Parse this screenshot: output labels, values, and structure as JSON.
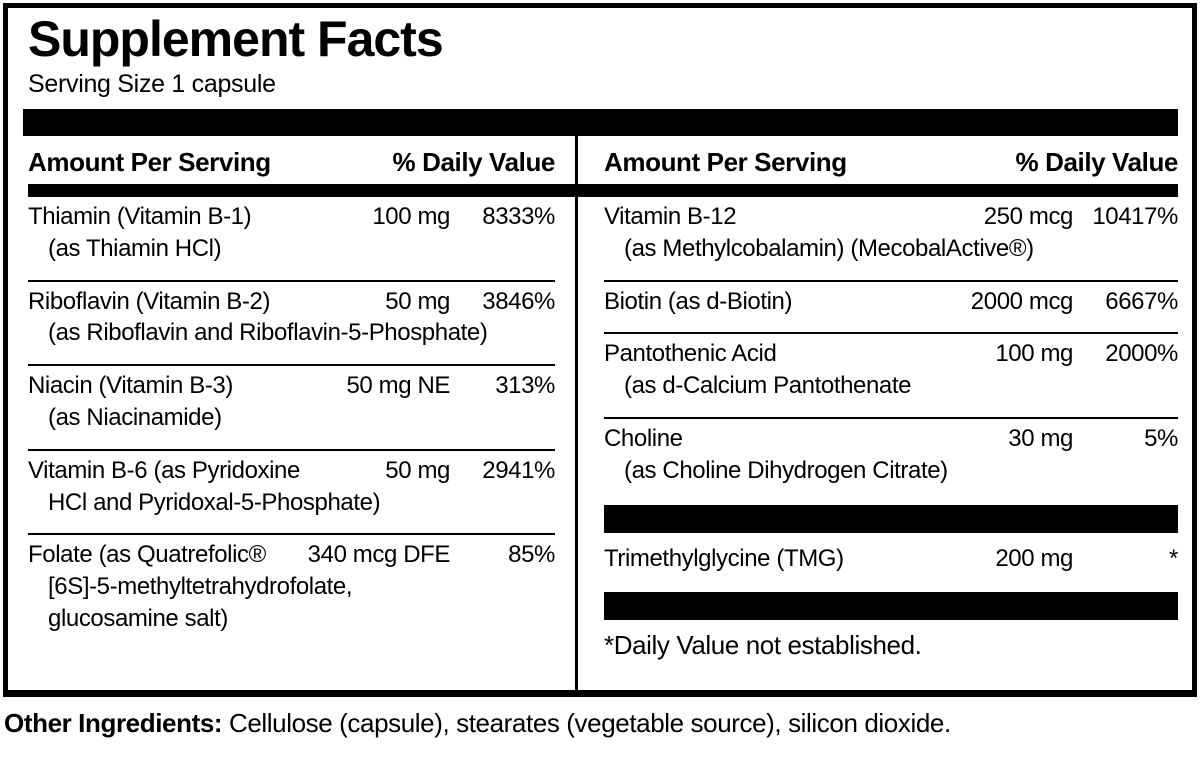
{
  "colors": {
    "ink": "#000000",
    "paper": "#ffffff"
  },
  "panel": {
    "title": "Supplement Facts",
    "serving_size": "Serving Size 1 capsule",
    "left_column": {
      "header": {
        "amount": "Amount Per Serving",
        "daily_value": "% Daily Value"
      },
      "items": [
        {
          "type": "row",
          "name": "Thiamin (Vitamin B-1)",
          "amount": "100 mg",
          "dv": "8333%",
          "sublines": [
            "(as Thiamin HCl)"
          ]
        },
        {
          "type": "row",
          "name": "Riboflavin (Vitamin B-2)",
          "amount": "50 mg",
          "dv": "3846%",
          "sublines": [
            "(as Riboflavin and Riboflavin-5-Phosphate)"
          ]
        },
        {
          "type": "row",
          "name": "Niacin (Vitamin B-3)",
          "amount": "50 mg NE",
          "dv": "313%",
          "sublines": [
            "(as Niacinamide)"
          ]
        },
        {
          "type": "row",
          "name": "Vitamin B-6 (as Pyridoxine",
          "amount": "50 mg",
          "dv": "2941%",
          "sublines": [
            "HCl and Pyridoxal-5-Phosphate)"
          ]
        },
        {
          "type": "row",
          "name": "Folate (as Quatrefolic®",
          "amount": "340 mcg DFE",
          "dv": "85%",
          "sublines": [
            "[6S]-5-methyltetrahydrofolate,",
            "glucosamine salt)"
          ]
        }
      ]
    },
    "right_column": {
      "header": {
        "amount": "Amount Per Serving",
        "daily_value": "% Daily Value"
      },
      "items": [
        {
          "type": "row",
          "name": "Vitamin B-12",
          "amount": "250 mcg",
          "dv": "10417%",
          "sublines": [
            "(as Methylcobalamin) (MecobalActive®)"
          ]
        },
        {
          "type": "row",
          "name": "Biotin (as d-Biotin)",
          "amount": "2000 mcg",
          "dv": "6667%",
          "sublines": []
        },
        {
          "type": "row",
          "name": "Pantothenic Acid",
          "amount": "100 mg",
          "dv": "2000%",
          "sublines": [
            "(as d-Calcium Pantothenate"
          ]
        },
        {
          "type": "row",
          "name": "Choline",
          "amount": "30 mg",
          "dv": "5%",
          "sublines": [
            "(as Choline Dihydrogen Citrate)"
          ]
        },
        {
          "type": "bar"
        },
        {
          "type": "row",
          "name": "Trimethylglycine (TMG)",
          "amount": "200 mg",
          "dv": "*",
          "sublines": []
        },
        {
          "type": "bar"
        },
        {
          "type": "note",
          "text": "*Daily Value not established."
        }
      ]
    },
    "footer": {
      "other_ingredients_label": "Other Ingredients:",
      "other_ingredients_text": " Cellulose (capsule), stearates (vegetable source), silicon dioxide."
    }
  }
}
